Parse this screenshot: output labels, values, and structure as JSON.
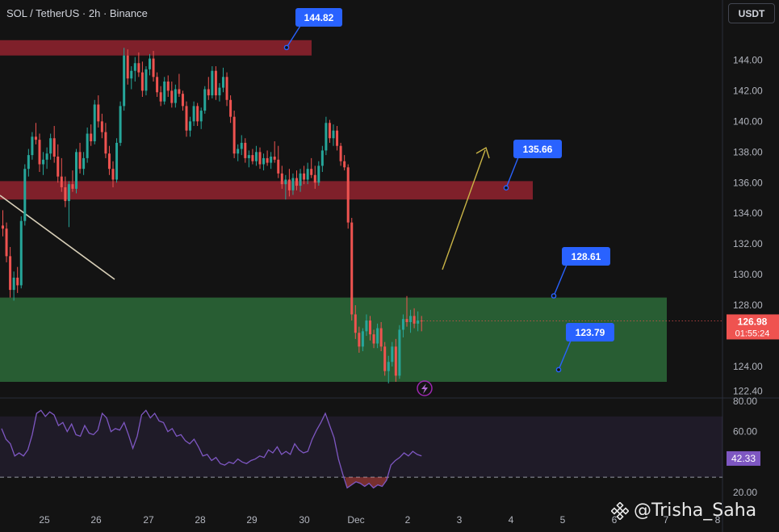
{
  "header": {
    "title": "SOL / TetherUS · 2h · Binance",
    "currency_button": "USDT"
  },
  "watermark": {
    "text": "@Trisha_Saha"
  },
  "colors": {
    "background": "#131313",
    "bull": "#26a69a",
    "bear": "#ef5350",
    "resistance_zone": "#8c222e",
    "support_zone": "#2d6b3a",
    "callout": "#2962ff",
    "rsi_line": "#7e57c2",
    "projection_arrow": "#c9b446"
  },
  "chart_data": {
    "type": "candlestick",
    "symbol": "SOL / TetherUS",
    "interval": "2h",
    "exchange": "Binance",
    "price_axis": {
      "ylim": [
        121.5,
        146.5
      ],
      "ticks": [
        "144.00",
        "142.00",
        "140.00",
        "138.00",
        "136.00",
        "134.00",
        "132.00",
        "130.00",
        "128.00",
        "124.00",
        "122.40"
      ]
    },
    "x_axis": {
      "labels": [
        "25",
        "26",
        "27",
        "28",
        "29",
        "30",
        "Dec",
        "2",
        "3",
        "4",
        "5",
        "6",
        "7",
        "8"
      ]
    },
    "ohlc": [
      [
        133.2,
        134.2,
        132.5,
        133.0
      ],
      [
        133.0,
        133.4,
        130.8,
        131.2
      ],
      [
        131.2,
        131.8,
        128.5,
        129.0
      ],
      [
        129.0,
        130.2,
        128.3,
        129.8
      ],
      [
        129.8,
        130.5,
        128.8,
        129.3
      ],
      [
        129.3,
        133.8,
        129.1,
        133.5
      ],
      [
        133.5,
        137.2,
        133.2,
        136.9
      ],
      [
        136.9,
        138.2,
        136.4,
        137.8
      ],
      [
        137.8,
        139.3,
        137.5,
        139.0
      ],
      [
        139.0,
        139.9,
        138.5,
        138.8
      ],
      [
        138.8,
        139.2,
        136.7,
        137.2
      ],
      [
        137.2,
        138.0,
        136.5,
        137.5
      ],
      [
        137.5,
        138.3,
        136.9,
        137.9
      ],
      [
        137.9,
        139.2,
        137.5,
        138.9
      ],
      [
        138.9,
        139.7,
        137.3,
        137.7
      ],
      [
        137.7,
        138.5,
        136.0,
        136.4
      ],
      [
        136.4,
        137.6,
        135.4,
        135.7
      ],
      [
        135.7,
        136.4,
        134.4,
        134.8
      ],
      [
        134.8,
        136.1,
        133.1,
        135.9
      ],
      [
        135.9,
        136.8,
        135.4,
        135.6
      ],
      [
        135.6,
        138.2,
        135.3,
        138.0
      ],
      [
        138.0,
        138.6,
        136.6,
        136.9
      ],
      [
        136.9,
        138.0,
        136.5,
        137.6
      ],
      [
        137.6,
        139.6,
        137.3,
        139.2
      ],
      [
        139.2,
        139.8,
        138.4,
        138.7
      ],
      [
        138.7,
        141.4,
        138.5,
        141.1
      ],
      [
        141.1,
        141.7,
        139.6,
        140.0
      ],
      [
        140.0,
        140.5,
        138.9,
        139.3
      ],
      [
        139.3,
        139.9,
        137.6,
        137.9
      ],
      [
        137.9,
        138.4,
        136.5,
        136.9
      ],
      [
        136.9,
        137.4,
        135.7,
        136.2
      ],
      [
        136.2,
        138.9,
        136.0,
        138.6
      ],
      [
        138.6,
        141.3,
        138.4,
        141.0
      ],
      [
        141.0,
        144.8,
        140.7,
        144.3
      ],
      [
        144.3,
        144.7,
        142.4,
        142.8
      ],
      [
        142.8,
        143.6,
        142.1,
        143.3
      ],
      [
        143.3,
        144.2,
        142.6,
        143.8
      ],
      [
        143.8,
        144.5,
        142.9,
        143.2
      ],
      [
        143.2,
        143.9,
        141.6,
        142.0
      ],
      [
        142.0,
        143.6,
        141.7,
        143.4
      ],
      [
        143.4,
        144.4,
        143.0,
        144.1
      ],
      [
        144.1,
        144.6,
        142.6,
        142.9
      ],
      [
        142.9,
        143.2,
        141.6,
        141.9
      ],
      [
        141.9,
        142.3,
        141.0,
        141.3
      ],
      [
        141.3,
        142.9,
        141.1,
        142.6
      ],
      [
        142.6,
        143.0,
        141.6,
        142.0
      ],
      [
        142.0,
        142.6,
        140.9,
        141.2
      ],
      [
        141.2,
        142.4,
        140.9,
        142.1
      ],
      [
        142.1,
        143.1,
        141.6,
        141.8
      ],
      [
        141.8,
        142.0,
        140.7,
        141.0
      ],
      [
        141.0,
        141.3,
        139.0,
        139.4
      ],
      [
        139.4,
        140.3,
        139.0,
        140.0
      ],
      [
        140.0,
        141.3,
        139.7,
        141.0
      ],
      [
        141.0,
        141.2,
        139.7,
        140.0
      ],
      [
        140.0,
        140.9,
        139.5,
        140.7
      ],
      [
        140.7,
        142.3,
        140.5,
        142.1
      ],
      [
        142.1,
        142.9,
        141.4,
        141.7
      ],
      [
        141.7,
        143.6,
        141.5,
        143.3
      ],
      [
        143.3,
        143.6,
        141.4,
        141.7
      ],
      [
        141.7,
        142.5,
        141.3,
        142.2
      ],
      [
        142.2,
        143.5,
        141.9,
        142.9
      ],
      [
        142.9,
        143.2,
        141.0,
        141.4
      ],
      [
        141.4,
        141.7,
        139.9,
        140.3
      ],
      [
        140.3,
        140.7,
        137.6,
        137.9
      ],
      [
        137.9,
        138.5,
        137.4,
        138.2
      ],
      [
        138.2,
        139.1,
        137.8,
        138.6
      ],
      [
        138.6,
        138.9,
        137.3,
        137.6
      ],
      [
        137.6,
        138.1,
        137.0,
        137.8
      ],
      [
        137.8,
        138.2,
        137.2,
        137.4
      ],
      [
        137.4,
        138.4,
        137.1,
        138.0
      ],
      [
        138.0,
        138.3,
        136.9,
        137.2
      ],
      [
        137.2,
        137.9,
        136.8,
        137.6
      ],
      [
        137.6,
        138.1,
        137.1,
        137.3
      ],
      [
        137.3,
        138.0,
        136.9,
        137.7
      ],
      [
        137.7,
        138.7,
        137.3,
        137.5
      ],
      [
        137.5,
        138.4,
        136.3,
        136.6
      ],
      [
        136.6,
        137.1,
        135.6,
        135.9
      ],
      [
        135.9,
        136.5,
        134.9,
        136.2
      ],
      [
        136.2,
        136.9,
        135.1,
        135.5
      ],
      [
        135.5,
        136.6,
        135.2,
        136.3
      ],
      [
        136.3,
        136.8,
        135.5,
        135.8
      ],
      [
        135.8,
        136.9,
        135.4,
        136.6
      ],
      [
        136.6,
        137.1,
        135.9,
        136.2
      ],
      [
        136.2,
        137.3,
        135.9,
        136.9
      ],
      [
        136.9,
        137.6,
        136.3,
        136.5
      ],
      [
        136.5,
        137.1,
        135.6,
        136.0
      ],
      [
        136.0,
        137.4,
        135.8,
        137.1
      ],
      [
        137.1,
        138.4,
        136.7,
        138.1
      ],
      [
        138.1,
        140.3,
        137.8,
        139.9
      ],
      [
        139.9,
        140.1,
        138.6,
        138.9
      ],
      [
        138.9,
        139.8,
        138.4,
        139.4
      ],
      [
        139.4,
        139.7,
        138.1,
        138.4
      ],
      [
        138.4,
        138.6,
        137.1,
        137.4
      ],
      [
        137.4,
        137.8,
        136.8,
        137.0
      ],
      [
        137.0,
        137.2,
        133.0,
        133.4
      ],
      [
        133.4,
        133.7,
        127.0,
        127.4
      ],
      [
        127.4,
        128.0,
        125.8,
        126.2
      ],
      [
        126.2,
        126.6,
        124.9,
        125.3
      ],
      [
        125.3,
        126.5,
        125.0,
        126.3
      ],
      [
        126.3,
        127.4,
        126.0,
        127.0
      ],
      [
        127.0,
        127.3,
        125.7,
        126.1
      ],
      [
        126.1,
        126.4,
        125.2,
        125.5
      ],
      [
        125.5,
        126.8,
        125.2,
        126.5
      ],
      [
        126.5,
        126.9,
        125.0,
        125.3
      ],
      [
        125.3,
        125.6,
        123.4,
        123.7
      ],
      [
        123.7,
        124.7,
        122.9,
        124.3
      ],
      [
        124.3,
        125.6,
        124.0,
        125.3
      ],
      [
        125.3,
        125.8,
        123.0,
        123.4
      ],
      [
        123.4,
        126.7,
        123.2,
        126.4
      ],
      [
        126.4,
        127.4,
        125.9,
        127.1
      ],
      [
        127.1,
        128.6,
        126.6,
        126.9
      ],
      [
        126.9,
        127.7,
        126.2,
        127.3
      ],
      [
        127.3,
        127.8,
        126.5,
        126.8
      ],
      [
        126.8,
        127.6,
        126.3,
        127.0
      ],
      [
        127.0,
        127.3,
        126.3,
        126.98
      ]
    ],
    "zones": [
      {
        "type": "resistance",
        "from": 144.3,
        "to": 145.3
      },
      {
        "type": "resistance",
        "from": 134.9,
        "to": 136.1
      },
      {
        "type": "support",
        "from": 123.0,
        "to": 128.5
      }
    ],
    "annotations": [
      {
        "label": "144.82",
        "price": 144.82
      },
      {
        "label": "135.66",
        "price": 135.66
      },
      {
        "label": "128.61",
        "price": 128.61
      },
      {
        "label": "123.79",
        "price": 123.79
      }
    ],
    "last_price": {
      "value": "126.98",
      "countdown": "01:55:24"
    },
    "rsi": {
      "ticks": [
        "80.00",
        "60.00",
        "20.00"
      ],
      "ylim": [
        15,
        82
      ],
      "band": [
        30,
        70
      ],
      "current": "42.33",
      "values": [
        62,
        55,
        52,
        44,
        46,
        44,
        48,
        58,
        72,
        74,
        70,
        73,
        71,
        64,
        66,
        60,
        65,
        58,
        57,
        64,
        59,
        58,
        61,
        72,
        69,
        60,
        62,
        61,
        66,
        58,
        49,
        57,
        71,
        74,
        69,
        72,
        67,
        66,
        60,
        62,
        57,
        58,
        54,
        52,
        55,
        50,
        44,
        45,
        41,
        43,
        39,
        38,
        40,
        39,
        42,
        40,
        39,
        41,
        42,
        44,
        43,
        48,
        46,
        50,
        45,
        47,
        45,
        52,
        48,
        46,
        47,
        55,
        61,
        66,
        72,
        64,
        56,
        42,
        32,
        23,
        25,
        27,
        26,
        24,
        26,
        23,
        25,
        24,
        28,
        38,
        41,
        43,
        46,
        44,
        47,
        45,
        44
      ]
    }
  }
}
